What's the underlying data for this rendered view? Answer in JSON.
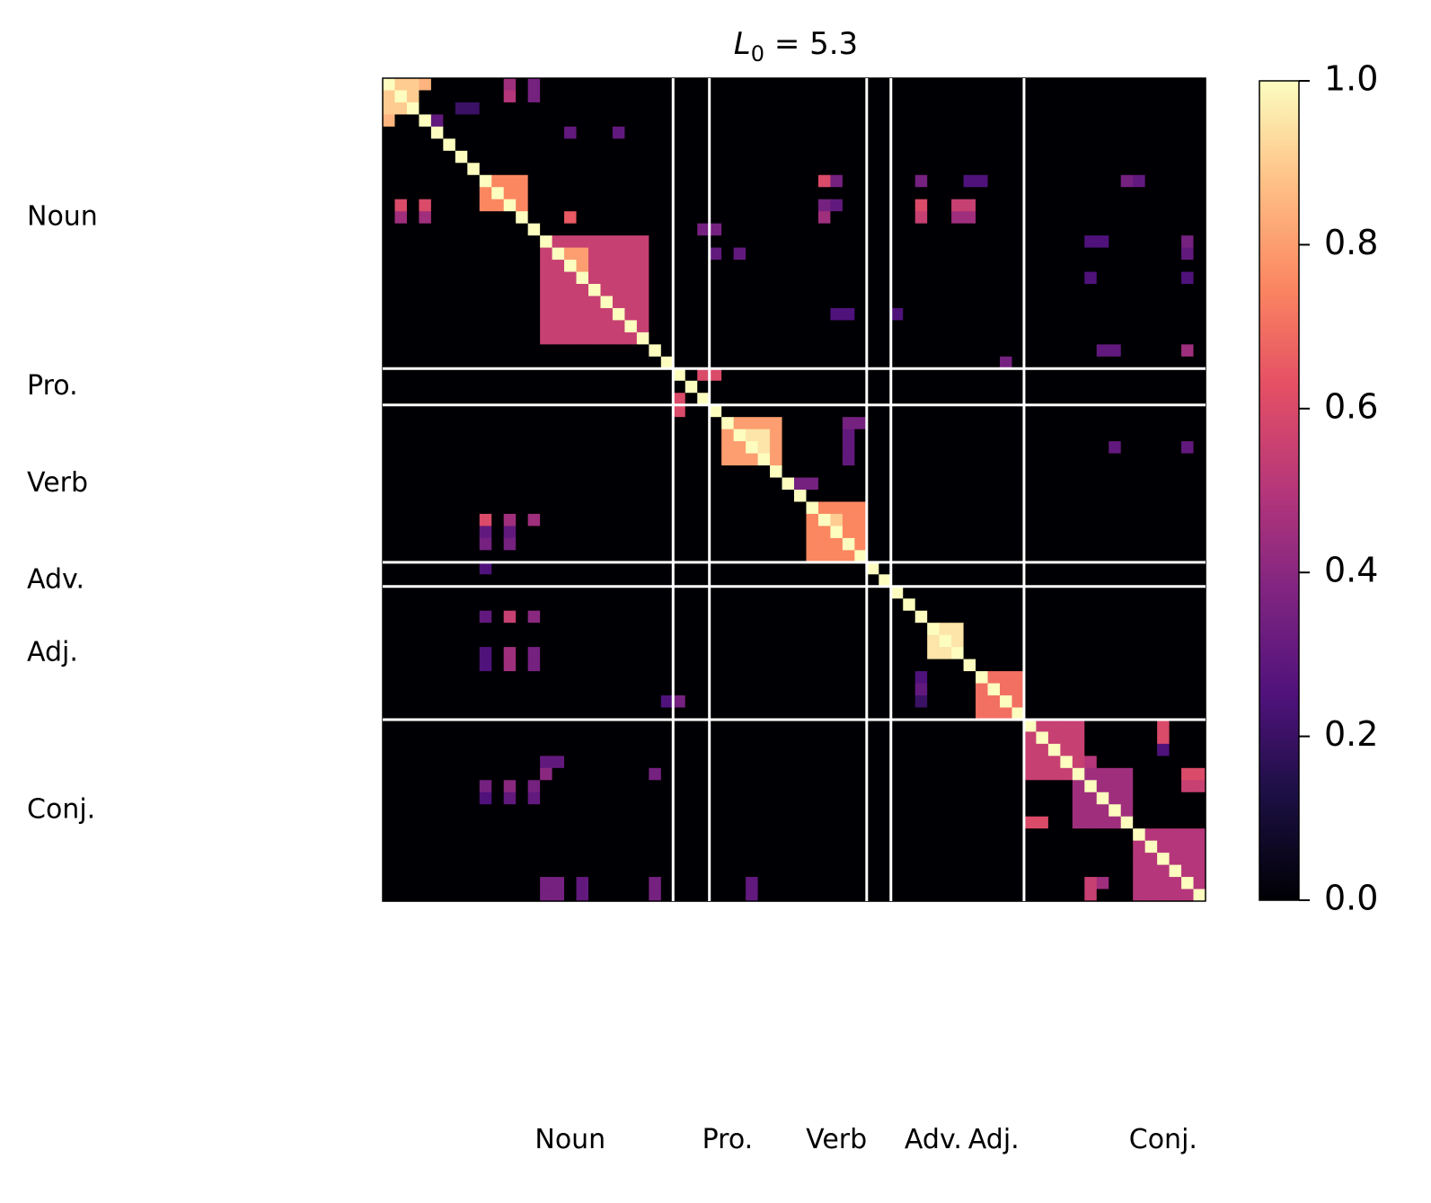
{
  "chart_data": {
    "type": "heatmap",
    "title_main": "L",
    "title_sub": "0",
    "title_rest": " = 5.3",
    "n": 68,
    "colormap": "magma",
    "vmin": 0.0,
    "vmax": 1.0,
    "colorbar_ticks": [
      0.0,
      0.2,
      0.4,
      0.6,
      0.8,
      1.0
    ],
    "colorbar_tick_labels": [
      "0.0",
      "0.2",
      "0.4",
      "0.6",
      "0.8",
      "1.0"
    ],
    "boundaries": [
      24,
      27,
      40,
      42,
      53
    ],
    "groups": [
      {
        "label": "Noun",
        "start": 0,
        "end": 24
      },
      {
        "label": "Pro.",
        "start": 24,
        "end": 27
      },
      {
        "label": "Verb",
        "start": 27,
        "end": 40
      },
      {
        "label": "Adv.",
        "start": 40,
        "end": 42
      },
      {
        "label": "Adj.",
        "start": 42,
        "end": 53
      },
      {
        "label": "Conj.",
        "start": 53,
        "end": 68
      }
    ],
    "row_labels": [
      {
        "label": "Noun",
        "row": 11
      },
      {
        "label": "Pro.",
        "row": 25
      },
      {
        "label": "Verb",
        "row": 33
      },
      {
        "label": "Adv.",
        "row": 41
      },
      {
        "label": "Adj.",
        "row": 47
      },
      {
        "label": "Conj.",
        "row": 60
      }
    ],
    "col_labels": [
      {
        "label": "Noun",
        "col": 15.5
      },
      {
        "label": "Pro.",
        "col": 28.5
      },
      {
        "label": "Verb",
        "col": 37.5
      },
      {
        "label": "Adv.",
        "col": 45.5
      },
      {
        "label": "Adj.",
        "col": 50.5
      },
      {
        "label": "Conj.",
        "col": 64.5
      }
    ],
    "diagonal": 1.0,
    "blocks": [
      {
        "r": [
          0,
          3
        ],
        "c": [
          0,
          3
        ],
        "v": 0.9
      },
      {
        "r": [
          8,
          11
        ],
        "c": [
          8,
          12
        ],
        "v": 0.75
      },
      {
        "r": [
          13,
          22
        ],
        "c": [
          13,
          22
        ],
        "v": 0.55
      },
      {
        "r": [
          14,
          16
        ],
        "c": [
          15,
          17
        ],
        "v": 0.8
      },
      {
        "r": [
          28,
          32
        ],
        "c": [
          28,
          33
        ],
        "v": 0.8
      },
      {
        "r": [
          29,
          31
        ],
        "c": [
          30,
          32
        ],
        "v": 0.95
      },
      {
        "r": [
          35,
          40
        ],
        "c": [
          35,
          40
        ],
        "v": 0.75
      },
      {
        "r": [
          45,
          48
        ],
        "c": [
          45,
          48
        ],
        "v": 0.95
      },
      {
        "r": [
          49,
          53
        ],
        "c": [
          49,
          53
        ],
        "v": 0.7
      },
      {
        "r": [
          53,
          58
        ],
        "c": [
          53,
          58
        ],
        "v": 0.55
      },
      {
        "r": [
          57,
          62
        ],
        "c": [
          57,
          62
        ],
        "v": 0.45
      },
      {
        "r": [
          62,
          68
        ],
        "c": [
          62,
          68
        ],
        "v": 0.5
      }
    ],
    "cells": [
      [
        0,
        3,
        0.85
      ],
      [
        3,
        0,
        0.85
      ],
      [
        0,
        10,
        0.45
      ],
      [
        1,
        10,
        0.5
      ],
      [
        0,
        12,
        0.35
      ],
      [
        1,
        12,
        0.35
      ],
      [
        2,
        6,
        0.2
      ],
      [
        2,
        7,
        0.2
      ],
      [
        3,
        4,
        0.3
      ],
      [
        4,
        15,
        0.3
      ],
      [
        4,
        19,
        0.3
      ],
      [
        8,
        36,
        0.6
      ],
      [
        8,
        37,
        0.35
      ],
      [
        8,
        44,
        0.35
      ],
      [
        8,
        48,
        0.25
      ],
      [
        8,
        49,
        0.25
      ],
      [
        8,
        61,
        0.35
      ],
      [
        8,
        62,
        0.3
      ],
      [
        10,
        3,
        0.6
      ],
      [
        10,
        1,
        0.6
      ],
      [
        10,
        44,
        0.6
      ],
      [
        10,
        47,
        0.55
      ],
      [
        10,
        48,
        0.55
      ],
      [
        10,
        36,
        0.35
      ],
      [
        10,
        37,
        0.3
      ],
      [
        11,
        1,
        0.45
      ],
      [
        11,
        3,
        0.45
      ],
      [
        11,
        15,
        0.65
      ],
      [
        11,
        36,
        0.45
      ],
      [
        11,
        44,
        0.55
      ],
      [
        11,
        47,
        0.45
      ],
      [
        11,
        48,
        0.45
      ],
      [
        12,
        26,
        0.35
      ],
      [
        12,
        27,
        0.35
      ],
      [
        13,
        58,
        0.25
      ],
      [
        13,
        59,
        0.25
      ],
      [
        13,
        66,
        0.35
      ],
      [
        14,
        66,
        0.3
      ],
      [
        14,
        27,
        0.3
      ],
      [
        14,
        29,
        0.3
      ],
      [
        16,
        58,
        0.25
      ],
      [
        16,
        66,
        0.25
      ],
      [
        19,
        37,
        0.25
      ],
      [
        19,
        38,
        0.25
      ],
      [
        19,
        42,
        0.25
      ],
      [
        22,
        59,
        0.3
      ],
      [
        22,
        60,
        0.3
      ],
      [
        22,
        66,
        0.45
      ],
      [
        23,
        51,
        0.35
      ],
      [
        24,
        26,
        0.6
      ],
      [
        24,
        27,
        0.6
      ],
      [
        26,
        24,
        0.6
      ],
      [
        27,
        24,
        0.6
      ],
      [
        28,
        38,
        0.35
      ],
      [
        28,
        39,
        0.35
      ],
      [
        29,
        38,
        0.3
      ],
      [
        30,
        38,
        0.3
      ],
      [
        30,
        60,
        0.3
      ],
      [
        30,
        66,
        0.3
      ],
      [
        31,
        38,
        0.3
      ],
      [
        33,
        34,
        0.35
      ],
      [
        33,
        35,
        0.35
      ],
      [
        35,
        35,
        0.5
      ],
      [
        36,
        38,
        0.3
      ],
      [
        36,
        39,
        0.3
      ],
      [
        36,
        37,
        0.9
      ],
      [
        36,
        8,
        0.6
      ],
      [
        36,
        10,
        0.45
      ],
      [
        36,
        12,
        0.45
      ],
      [
        37,
        8,
        0.3
      ],
      [
        37,
        10,
        0.3
      ],
      [
        38,
        8,
        0.35
      ],
      [
        38,
        10,
        0.35
      ],
      [
        40,
        8,
        0.25
      ],
      [
        44,
        8,
        0.3
      ],
      [
        44,
        10,
        0.55
      ],
      [
        44,
        12,
        0.4
      ],
      [
        47,
        8,
        0.25
      ],
      [
        47,
        10,
        0.45
      ],
      [
        47,
        12,
        0.35
      ],
      [
        48,
        8,
        0.25
      ],
      [
        48,
        10,
        0.45
      ],
      [
        48,
        12,
        0.35
      ],
      [
        49,
        44,
        0.25
      ],
      [
        50,
        44,
        0.3
      ],
      [
        51,
        44,
        0.2
      ],
      [
        51,
        23,
        0.25
      ],
      [
        51,
        24,
        0.35
      ],
      [
        54,
        53,
        0.3
      ],
      [
        54,
        54,
        0.3
      ],
      [
        53,
        64,
        0.6
      ],
      [
        54,
        64,
        0.6
      ],
      [
        55,
        64,
        0.25
      ],
      [
        56,
        58,
        0.5
      ],
      [
        57,
        66,
        0.6
      ],
      [
        57,
        67,
        0.6
      ],
      [
        58,
        66,
        0.55
      ],
      [
        58,
        67,
        0.55
      ],
      [
        56,
        13,
        0.3
      ],
      [
        56,
        14,
        0.3
      ],
      [
        57,
        13,
        0.4
      ],
      [
        57,
        22,
        0.35
      ],
      [
        58,
        8,
        0.35
      ],
      [
        58,
        10,
        0.4
      ],
      [
        58,
        12,
        0.35
      ],
      [
        59,
        8,
        0.25
      ],
      [
        59,
        10,
        0.3
      ],
      [
        59,
        12,
        0.3
      ],
      [
        61,
        53,
        0.6
      ],
      [
        61,
        54,
        0.6
      ],
      [
        66,
        58,
        0.55
      ],
      [
        67,
        58,
        0.55
      ],
      [
        66,
        59,
        0.45
      ],
      [
        66,
        13,
        0.35
      ],
      [
        66,
        14,
        0.35
      ],
      [
        67,
        13,
        0.35
      ],
      [
        67,
        14,
        0.35
      ],
      [
        66,
        16,
        0.3
      ],
      [
        67,
        16,
        0.3
      ],
      [
        66,
        22,
        0.35
      ],
      [
        67,
        22,
        0.35
      ],
      [
        66,
        30,
        0.3
      ],
      [
        67,
        30,
        0.3
      ]
    ]
  }
}
